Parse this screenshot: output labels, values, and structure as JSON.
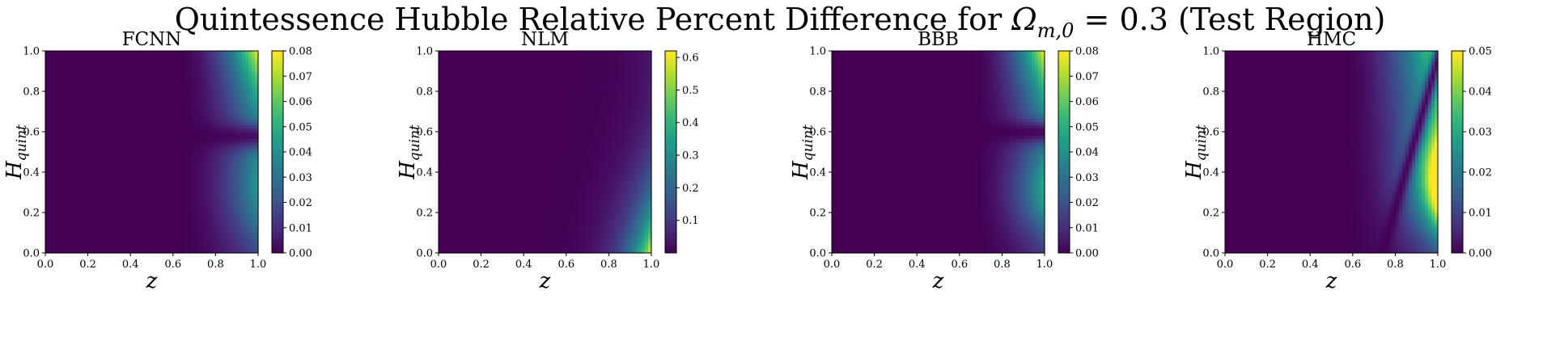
{
  "figure": {
    "title_prefix": "Quintessence Hubble Relative Percent Difference for ",
    "title_symbol": "Ω",
    "title_subscript": "m,0",
    "title_suffix": " = 0.3 (Test Region)"
  },
  "colormap": "viridis",
  "colors": {
    "viridis_low": "#440154",
    "viridis_mid": "#21918c",
    "viridis_high": "#fde725"
  },
  "chart_data": [
    {
      "type": "heatmap",
      "title": "FCNN",
      "xlabel": "z",
      "ylabel_main": "H",
      "ylabel_sub": "quint",
      "xlim": [
        0.0,
        1.0
      ],
      "ylim": [
        0.0,
        1.0
      ],
      "xticks": [
        "0.0",
        "0.2",
        "0.4",
        "0.6",
        "0.8",
        "1.0"
      ],
      "yticks": [
        "0.0",
        "0.2",
        "0.4",
        "0.6",
        "0.8",
        "1.0"
      ],
      "colorbar": {
        "min": 0.0,
        "max": 0.08,
        "ticks": [
          "0.00",
          "0.01",
          "0.02",
          "0.03",
          "0.04",
          "0.05",
          "0.06",
          "0.07",
          "0.08"
        ]
      },
      "pattern": "Error near z = 1, largest at top-right (≈0.08), a dark minimum band near H_quint ≈ 0.58, secondary rise toward H_quint ≈ 0.3"
    },
    {
      "type": "heatmap",
      "title": "NLM",
      "xlabel": "z",
      "ylabel_main": "H",
      "ylabel_sub": "quint",
      "xlim": [
        0.0,
        1.0
      ],
      "ylim": [
        0.0,
        1.0
      ],
      "xticks": [
        "0.0",
        "0.2",
        "0.4",
        "0.6",
        "0.8",
        "1.0"
      ],
      "yticks": [
        "0.0",
        "0.2",
        "0.4",
        "0.6",
        "0.8",
        "1.0"
      ],
      "colorbar": {
        "min": 0.0,
        "max": 0.62,
        "ticks": [
          "0.1",
          "0.2",
          "0.3",
          "0.4",
          "0.5",
          "0.6"
        ]
      },
      "pattern": "Near-zero almost everywhere; error grows toward z = 1 and peaks at the bottom-right corner (≈0.62)"
    },
    {
      "type": "heatmap",
      "title": "BBB",
      "xlabel": "z",
      "ylabel_main": "H",
      "ylabel_sub": "quint",
      "xlim": [
        0.0,
        1.0
      ],
      "ylim": [
        0.0,
        1.0
      ],
      "xticks": [
        "0.0",
        "0.2",
        "0.4",
        "0.6",
        "0.8",
        "1.0"
      ],
      "yticks": [
        "0.0",
        "0.2",
        "0.4",
        "0.6",
        "0.8",
        "1.0"
      ],
      "colorbar": {
        "min": 0.0,
        "max": 0.08,
        "ticks": [
          "0.00",
          "0.01",
          "0.02",
          "0.03",
          "0.04",
          "0.05",
          "0.06",
          "0.07",
          "0.08"
        ]
      },
      "pattern": "Error near z = 1, largest at top-right (≈0.08), a dark minimum band near H_quint ≈ 0.58, secondary lobe around H_quint ≈ 0.3"
    },
    {
      "type": "heatmap",
      "title": "HMC",
      "xlabel": "z",
      "ylabel_main": "H",
      "ylabel_sub": "quint",
      "xlim": [
        0.0,
        1.0
      ],
      "ylim": [
        0.0,
        1.0
      ],
      "xticks": [
        "0.0",
        "0.2",
        "0.4",
        "0.6",
        "0.8",
        "1.0"
      ],
      "yticks": [
        "0.0",
        "0.2",
        "0.4",
        "0.6",
        "0.8",
        "1.0"
      ],
      "colorbar": {
        "min": 0.0,
        "max": 0.05,
        "ticks": [
          "0.00",
          "0.01",
          "0.02",
          "0.03",
          "0.04",
          "0.05"
        ]
      },
      "pattern": "Broad error region for z > 0.6 at large H_quint (≈0.04 at top-right), a diagonal dark minimum curve from (0.75, 0) to (1.0, 0.8), strong peak (≈0.05) at z = 1, H_quint ≈ 0.35"
    }
  ]
}
